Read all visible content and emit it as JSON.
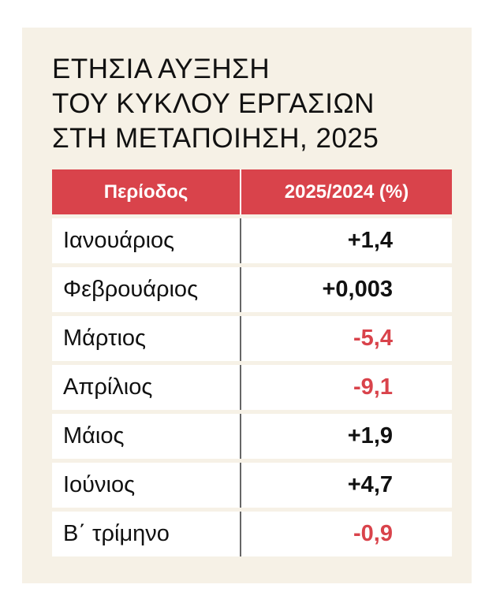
{
  "title_lines": [
    "ΕΤΗΣΙΑ ΑΥΞΗΣΗ",
    "ΤΟΥ ΚΥΚΛΟΥ ΕΡΓΑΣΙΩΝ",
    "ΣΤΗ ΜΕΤΑΠΟΙΗΣΗ, 2025"
  ],
  "table": {
    "headers": [
      "Περίοδος",
      "2025/2024 (%)"
    ],
    "rows": [
      {
        "period": "Ιανουάριος",
        "value": "+1,4",
        "negative": false
      },
      {
        "period": "Φεβρουάριος",
        "value": "+0,003",
        "negative": false
      },
      {
        "period": "Μάρτιος",
        "value": "-5,4",
        "negative": true
      },
      {
        "period": "Απρίλιος",
        "value": "-9,1",
        "negative": true
      },
      {
        "period": "Μάιος",
        "value": "+1,9",
        "negative": false
      },
      {
        "period": "Ιούνιος",
        "value": "+4,7",
        "negative": false
      },
      {
        "period": "Β΄ τρίμηνο",
        "value": "-0,9",
        "negative": true
      }
    ]
  },
  "colors": {
    "accent": "#d9434b",
    "panel_bg": "#f6f1e6",
    "text": "#111111"
  }
}
